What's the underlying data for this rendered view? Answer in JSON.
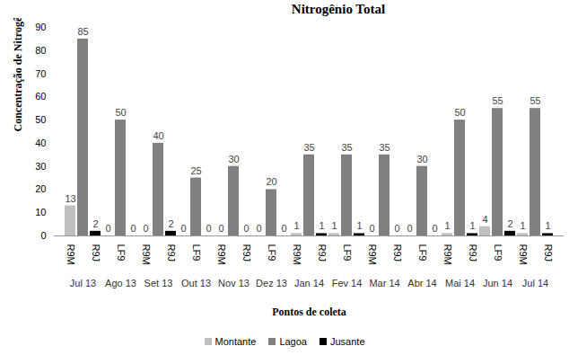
{
  "chart_data": {
    "type": "bar",
    "title": "Nitrogênio Total",
    "x_label": "Pontos de coleta",
    "y_label": "Concentração de Nitrogênio Total (mg/L)",
    "categories": [
      "R9M",
      null,
      "R9J",
      null,
      "LF9",
      null,
      "R9M",
      null,
      "R9J",
      null,
      "LF9",
      null,
      "R9M",
      null,
      "R9J",
      null,
      "LF9",
      null,
      "R9M",
      null,
      "R9J",
      null,
      "LF9",
      null,
      "R9M",
      null,
      "R9J",
      null,
      "LF9",
      null,
      "R9M",
      null,
      "R9J",
      null,
      "LF9",
      null,
      "R9M",
      null,
      "R9J"
    ],
    "group_labels": [
      "Jul 13",
      "Ago 13",
      "Set 13",
      "Out 13",
      "Nov 13",
      "Dez 13",
      "Jan 14",
      "Fev 14",
      "Mar 14",
      "Abr 14",
      "Mai 14",
      "Jun 14",
      "Jul 14"
    ],
    "series": [
      {
        "name": "Montante",
        "color": "#bfbfbf",
        "values": [
          13,
          null,
          null,
          0,
          null,
          null,
          0,
          null,
          null,
          0,
          null,
          null,
          0,
          null,
          null,
          0,
          null,
          null,
          1,
          null,
          null,
          1,
          null,
          null,
          0,
          null,
          null,
          0,
          null,
          null,
          1,
          null,
          null,
          4,
          null,
          null,
          1,
          null,
          null
        ]
      },
      {
        "name": "Lagoa",
        "color": "#808080",
        "values": [
          null,
          85,
          null,
          null,
          50,
          null,
          null,
          40,
          null,
          null,
          25,
          null,
          null,
          30,
          null,
          null,
          20,
          null,
          null,
          35,
          null,
          null,
          35,
          null,
          null,
          35,
          null,
          null,
          30,
          null,
          null,
          50,
          null,
          null,
          55,
          null,
          null,
          55,
          null
        ]
      },
      {
        "name": "Jusante",
        "color": "#000000",
        "values": [
          null,
          null,
          2,
          null,
          null,
          0,
          null,
          null,
          2,
          null,
          null,
          0,
          null,
          null,
          0,
          null,
          null,
          0,
          null,
          null,
          1,
          null,
          null,
          1,
          null,
          null,
          0,
          null,
          null,
          0,
          null,
          null,
          1,
          null,
          null,
          2,
          null,
          null,
          1
        ]
      }
    ],
    "ylim": [
      0,
      90
    ],
    "yticks": [
      0,
      10,
      20,
      30,
      40,
      50,
      60,
      70,
      80,
      90
    ],
    "grid": false,
    "data_labels": true,
    "legend": "bottom"
  }
}
